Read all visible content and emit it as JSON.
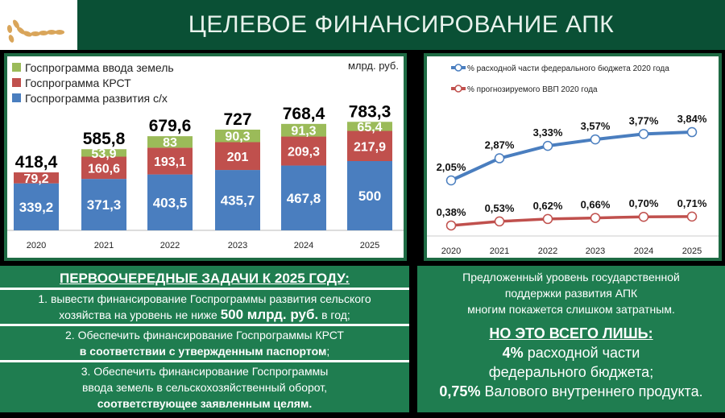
{
  "header": {
    "title": "ЦЕЛЕВОЕ ФИНАНСИРОВАНИЕ АПК"
  },
  "chart_data": [
    {
      "type": "bar",
      "stacked": true,
      "unit_label": "млрд. руб.",
      "categories": [
        "2020",
        "2021",
        "2022",
        "2023",
        "2024",
        "2025"
      ],
      "series": [
        {
          "name": "Госпрограмма развития с/х",
          "color": "#4a7ebf",
          "values": [
            339.2,
            371.3,
            403.5,
            435.7,
            467.8,
            500
          ],
          "labels": [
            "339,2",
            "371,3",
            "403,5",
            "435,7",
            "467,8",
            "500"
          ]
        },
        {
          "name": "Госпрограмма КРСТ",
          "color": "#c0504d",
          "values": [
            79.2,
            160.6,
            193.1,
            201,
            209.3,
            217.9
          ],
          "labels": [
            "79,2",
            "160,6",
            "193,1",
            "201",
            "209,3",
            "217,9"
          ]
        },
        {
          "name": "Госпрограмма ввода земель",
          "color": "#9bbb59",
          "values": [
            0,
            53.9,
            83,
            90.3,
            91.3,
            65.4
          ],
          "labels": [
            "",
            "53,9",
            "83",
            "90,3",
            "91,3",
            "65,4"
          ]
        }
      ],
      "totals": [
        "418,4",
        "585,8",
        "679,6",
        "727",
        "768,4",
        "783,3"
      ],
      "legend": [
        "Госпрограмма ввода земель",
        "Госпрограмма КРСТ",
        "Госпрограмма развития с/х"
      ]
    },
    {
      "type": "line",
      "categories": [
        "2020",
        "2021",
        "2022",
        "2023",
        "2024",
        "2025"
      ],
      "series": [
        {
          "name": "% расходной части федерального бюджета 2020 года",
          "color": "#4a7ebf",
          "values": [
            2.05,
            2.87,
            3.33,
            3.57,
            3.77,
            3.84
          ],
          "labels": [
            "2,05%",
            "2,87%",
            "3,33%",
            "3,57%",
            "3,77%",
            "3,84%"
          ]
        },
        {
          "name": "% прогнозируемого ВВП 2020 года",
          "color": "#c0504d",
          "values": [
            0.38,
            0.53,
            0.62,
            0.66,
            0.7,
            0.71
          ],
          "labels": [
            "0,38%",
            "0,53%",
            "0,62%",
            "0,66%",
            "0,70%",
            "0,71%"
          ]
        }
      ]
    }
  ],
  "tasks": {
    "title": "ПЕРВООЧЕРЕДНЫЕ ЗАДАЧИ К 2025 ГОДУ:",
    "t1a": "1. вывести финансирование Госпрограммы развития сельского",
    "t1b": "хозяйства на уровень не ниже ",
    "t1bold": "500 млрд. руб.",
    "t1c": " в год;",
    "t2a": "2. Обеспечить финансирование Госпрограммы КРСТ",
    "t2bold": "в соответствии с утвержденным паспортом",
    "t2c": ";",
    "t3a": "3. Обеспечить финансирование Госпрограммы",
    "t3b": "ввода земель в сельскохозяйственный оборот,",
    "t3bold": "соответствующее заявленным целям."
  },
  "note": {
    "l1": "Предложенный уровень государственной",
    "l2": "поддержки развития АПК",
    "l3": "многим покажется слишком затратным.",
    "headline": "НО ЭТО ВСЕГО ЛИШЬ:",
    "b1": "4%",
    "l4": " расходной части",
    "l5": "федерального бюджета;",
    "b2": "0,75%",
    "l6": " Валового внутреннего продукта."
  }
}
